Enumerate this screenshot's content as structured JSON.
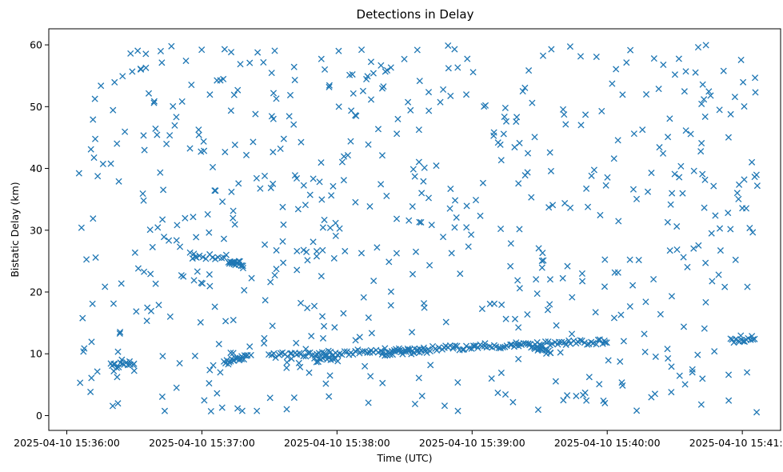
{
  "chart_data": {
    "type": "scatter",
    "title": "Detections in Delay",
    "xlabel": "Time (UTC)",
    "ylabel": "Bistatic Delay (km)",
    "marker": "x",
    "color": "#1f77b4",
    "grid": false,
    "legend": "none",
    "xlim": [
      "2025-04-10 15:35:52",
      "2025-04-10 15:41:17"
    ],
    "ylim": [
      -2.4,
      62.6
    ],
    "xticks": [
      "2025-04-10 15:36:00",
      "2025-04-10 15:37:00",
      "2025-04-10 15:38:00",
      "2025-04-10 15:39:00",
      "2025-04-10 15:40:00",
      "2025-04-10 15:41:00"
    ],
    "yticks": [
      0,
      10,
      20,
      30,
      40,
      50,
      60
    ],
    "points_time_start": "2025-04-10 15:36:05",
    "points_time_end": "2025-04-10 15:41:07",
    "clutter_points": 620,
    "tracks": [
      {
        "from": [
          "2025-04-10 15:36:20",
          8.0
        ],
        "to": [
          "2025-04-10 15:36:30",
          8.5
        ],
        "n": 14
      },
      {
        "from": [
          "2025-04-10 15:36:55",
          26.0
        ],
        "to": [
          "2025-04-10 15:37:10",
          25.5
        ],
        "n": 12
      },
      {
        "from": [
          "2025-04-10 15:37:12",
          25.0
        ],
        "to": [
          "2025-04-10 15:37:18",
          24.5
        ],
        "n": 18
      },
      {
        "from": [
          "2025-04-10 15:37:10",
          8.5
        ],
        "to": [
          "2025-04-10 15:37:20",
          9.5
        ],
        "n": 20
      },
      {
        "from": [
          "2025-04-10 15:37:30",
          9.7
        ],
        "to": [
          "2025-04-10 15:40:00",
          12.0
        ],
        "n": 150
      },
      {
        "from": [
          "2025-04-10 15:37:50",
          9.0
        ],
        "to": [
          "2025-04-10 15:38:00",
          9.5
        ],
        "n": 15
      },
      {
        "from": [
          "2025-04-10 15:38:20",
          10.0
        ],
        "to": [
          "2025-04-10 15:38:40",
          10.5
        ],
        "n": 18
      },
      {
        "from": [
          "2025-04-10 15:39:25",
          11.3
        ],
        "to": [
          "2025-04-10 15:39:35",
          10.0
        ],
        "n": 18
      },
      {
        "from": [
          "2025-04-10 15:40:55",
          12.1
        ],
        "to": [
          "2025-04-10 15:41:05",
          12.5
        ],
        "n": 14
      }
    ]
  }
}
